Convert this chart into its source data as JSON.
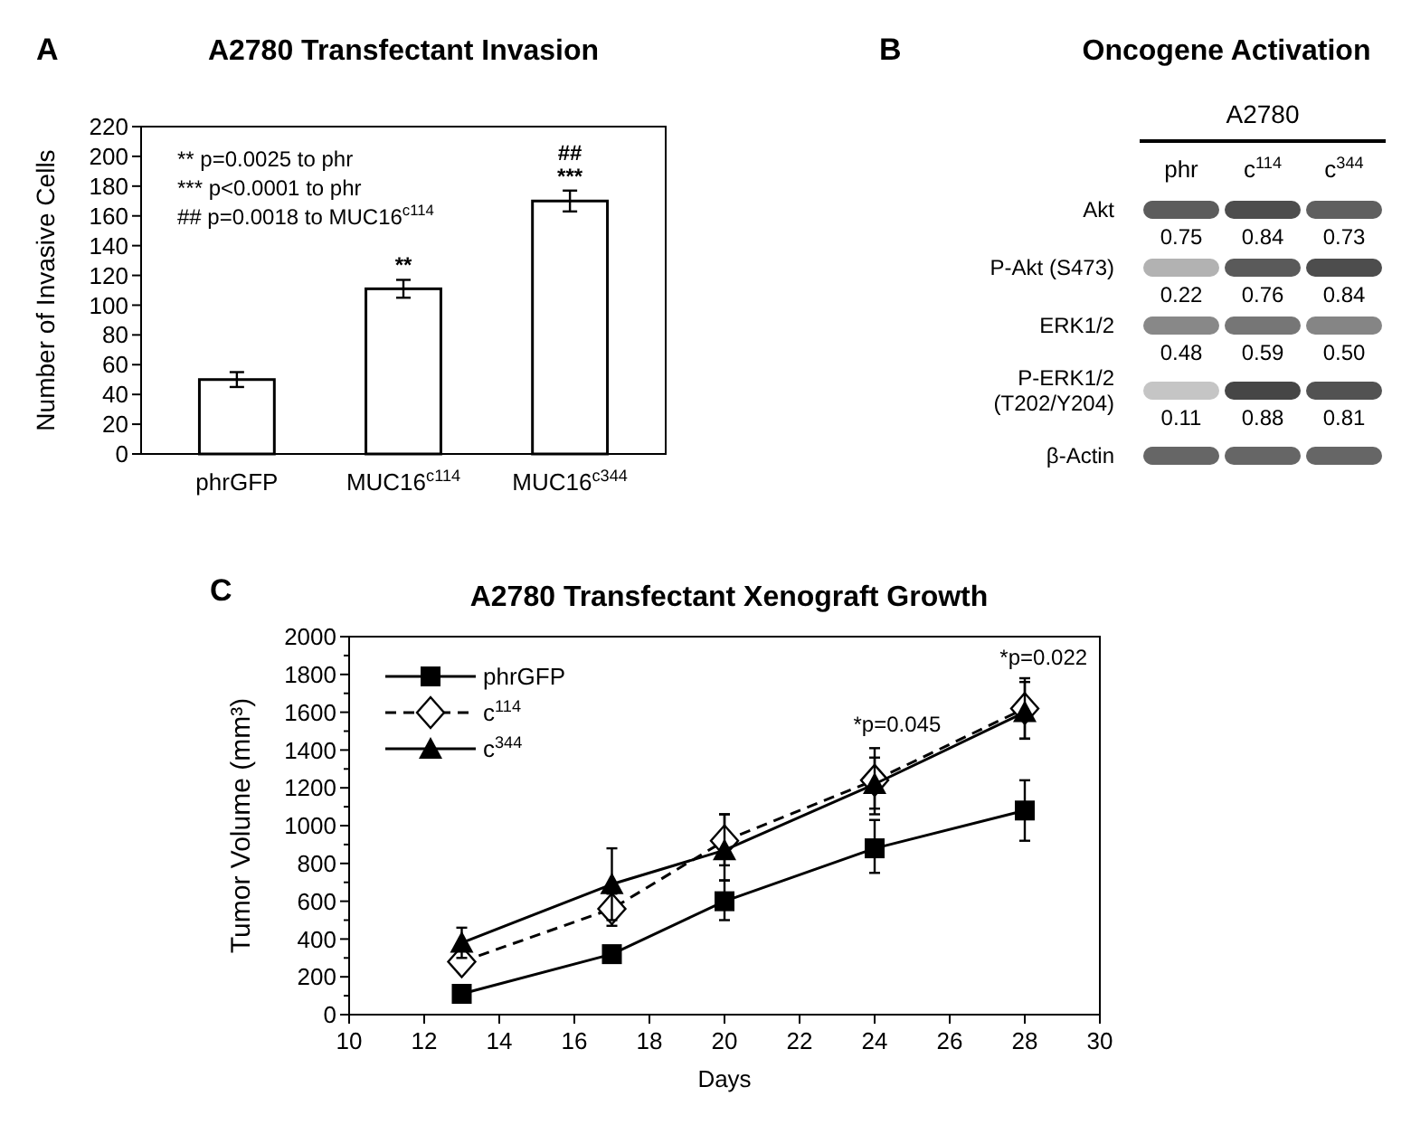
{
  "chart_data": [
    {
      "type": "bar",
      "title": "A2780 Transfectant Invasion",
      "ylabel": "Number of Invasive Cells",
      "categories": [
        "phrGFP",
        "MUC16$^{c114}$",
        "MUC16$^{c344}$"
      ],
      "values": [
        50,
        111,
        170
      ],
      "errors": [
        5,
        6,
        7
      ],
      "color": "#ffffff",
      "ylim": [
        0,
        220
      ],
      "yticks": [
        0,
        20,
        40,
        60,
        80,
        100,
        120,
        140,
        160,
        180,
        200,
        220
      ],
      "grid": false,
      "annotations": [
        "A",
        "** p=0.0025 to phr",
        "*** p<0.0001 to phr",
        "## p=0.0018 to MUC16$^{c114}$",
        {
          "text": "**",
          "x": "MUC16$^{c114}$",
          "y": 117
        },
        {
          "text": "***",
          "x": "MUC16$^{c344}$",
          "y": 177
        },
        {
          "text": "##",
          "x": "MUC16$^{c344}$",
          "y": 177
        }
      ]
    },
    {
      "type": "heatmap",
      "title": "Oncogene Activation",
      "subtitle": "A2780",
      "categories": [
        "phr",
        "c$^{114}$",
        "c$^{344}$"
      ],
      "y_categories": [
        "Akt",
        "P-Akt (S473)",
        "ERK1/2",
        "P-ERK1/2\n(T202/Y204)",
        "β-Actin"
      ],
      "cells": [
        [
          0.75,
          0.84,
          0.73
        ],
        [
          0.22,
          0.76,
          0.84
        ],
        [
          0.48,
          0.59,
          0.5
        ],
        [
          0.11,
          0.88,
          0.81
        ],
        [
          null,
          null,
          null
        ]
      ],
      "cell_labels": [
        [
          "0.75",
          "0.84",
          "0.73"
        ],
        [
          "0.22",
          "0.76",
          "0.84"
        ],
        [
          "0.48",
          "0.59",
          "0.50"
        ],
        [
          "0.11",
          "0.88",
          "0.81"
        ],
        [
          null,
          null,
          null
        ]
      ],
      "annotations": [
        "B"
      ]
    },
    {
      "type": "line",
      "title": "A2780 Transfectant Xenograft Growth",
      "xlabel": "Days",
      "ylabel": "Tumor Volume (mm³)",
      "xlim": [
        10,
        30
      ],
      "xticks": [
        10,
        12,
        14,
        16,
        18,
        20,
        22,
        24,
        26,
        28,
        30
      ],
      "ylim": [
        0,
        2000
      ],
      "yticks": [
        0,
        {
          "value": 100,
          "label": null
        },
        200,
        {
          "value": 300,
          "label": null
        },
        400,
        {
          "value": 500,
          "label": null
        },
        600,
        {
          "value": 700,
          "label": null
        },
        800,
        {
          "value": 900,
          "label": null
        },
        1000,
        {
          "value": 1100,
          "label": null
        },
        1200,
        {
          "value": 1300,
          "label": null
        },
        1400,
        {
          "value": 1500,
          "label": null
        },
        1600,
        {
          "value": 1700,
          "label": null
        },
        1800,
        {
          "value": 1900,
          "label": null
        },
        2000
      ],
      "grid": false,
      "legend": "top left",
      "x": [
        13,
        17,
        20,
        24,
        28
      ],
      "series": [
        {
          "name": "phrGFP",
          "color": "#000000",
          "marker": "square",
          "line_style": "solid",
          "values": [
            110,
            320,
            600,
            880,
            1080
          ],
          "errors": [
            [
              80,
              140
            ],
            [
              280,
              350
            ],
            [
              500,
              710
            ],
            [
              750,
              1030
            ],
            [
              920,
              1240
            ]
          ]
        },
        {
          "name": "c$^{114}$",
          "color": "#000000",
          "marker": "diamond",
          "line_style": "dashed",
          "values": [
            280,
            560,
            920,
            1240,
            1620
          ],
          "errors": [
            [
              230,
              320
            ],
            [
              470,
              640
            ],
            [
              790,
              1060
            ],
            [
              1060,
              1360
            ],
            [
              1460,
              1760
            ]
          ]
        },
        {
          "name": "c$^{344}$",
          "color": "#000000",
          "marker": "triangle",
          "line_style": "solid",
          "values": [
            380,
            690,
            870,
            1220,
            1600
          ],
          "errors": [
            [
              300,
              460
            ],
            [
              500,
              880
            ],
            [
              710,
              1060
            ],
            [
              1090,
              1410
            ],
            [
              1460,
              1780
            ]
          ]
        }
      ],
      "annotations": [
        "C",
        "*p=0.045",
        "*p=0.022"
      ]
    }
  ]
}
